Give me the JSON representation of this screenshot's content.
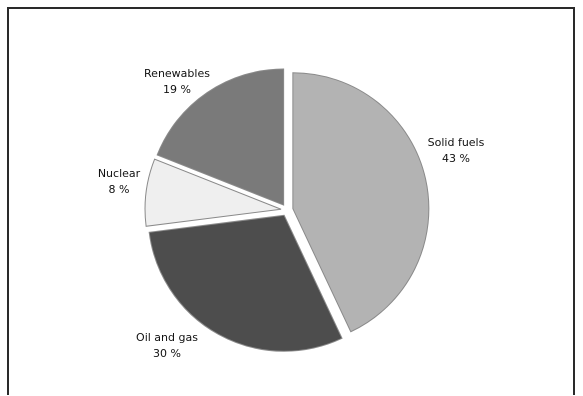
{
  "chart_data": {
    "type": "pie",
    "title": "",
    "slices": [
      {
        "label": "Solid fuels",
        "value": 43,
        "value_text": "43 %",
        "color": "#b3b3b3"
      },
      {
        "label": "Oil and gas",
        "value": 30,
        "value_text": "30 %",
        "color": "#4d4d4d"
      },
      {
        "label": "Nuclear",
        "value": 8,
        "value_text": "8 %",
        "color": "#efefef"
      },
      {
        "label": "Renewables",
        "value": 19,
        "value_text": "19 %",
        "color": "#7a7a7a"
      }
    ],
    "exploded": true,
    "start_angle_deg": -90,
    "direction": "clockwise"
  }
}
